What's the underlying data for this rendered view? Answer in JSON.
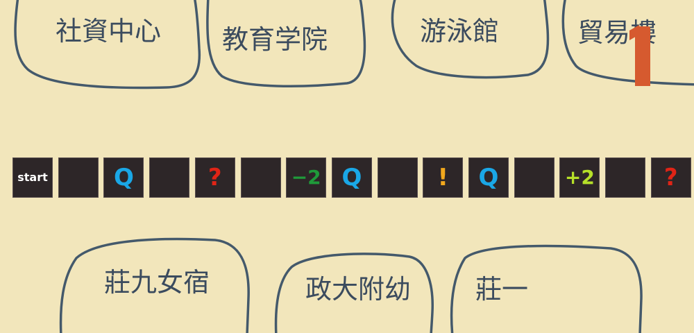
{
  "buildings": [
    {
      "id": "social",
      "label": "社資中心"
    },
    {
      "id": "education",
      "label": "教育学院"
    },
    {
      "id": "pool",
      "label": "游泳館"
    },
    {
      "id": "trade",
      "label": "貿易樓"
    },
    {
      "id": "dorm9",
      "label": "莊九女宿"
    },
    {
      "id": "kindergarten",
      "label": "政大附幼"
    },
    {
      "id": "dorm1",
      "label": "莊一"
    }
  ],
  "board": {
    "tiles": [
      {
        "text": "start",
        "color": "#ffffff",
        "kind": "start"
      },
      {
        "text": "",
        "color": "#ffffff",
        "kind": "blank"
      },
      {
        "text": "Q",
        "color": "#1aa7e6",
        "kind": "sym"
      },
      {
        "text": "",
        "color": "#ffffff",
        "kind": "blank"
      },
      {
        "text": "?",
        "color": "#e02416",
        "kind": "sym"
      },
      {
        "text": "",
        "color": "#ffffff",
        "kind": "blank"
      },
      {
        "text": "−2",
        "color": "#1f9a3a",
        "kind": "num"
      },
      {
        "text": "Q",
        "color": "#1aa7e6",
        "kind": "sym"
      },
      {
        "text": "",
        "color": "#ffffff",
        "kind": "blank"
      },
      {
        "text": "!",
        "color": "#f2a81d",
        "kind": "sym"
      },
      {
        "text": "Q",
        "color": "#1aa7e6",
        "kind": "sym"
      },
      {
        "text": "",
        "color": "#ffffff",
        "kind": "blank"
      },
      {
        "text": "+2",
        "color": "#b6e029",
        "kind": "num"
      },
      {
        "text": "",
        "color": "#ffffff",
        "kind": "blank"
      },
      {
        "text": "?",
        "color": "#e02416",
        "kind": "sym"
      }
    ]
  },
  "player": {
    "token": "1",
    "color": "#d65a2f"
  }
}
